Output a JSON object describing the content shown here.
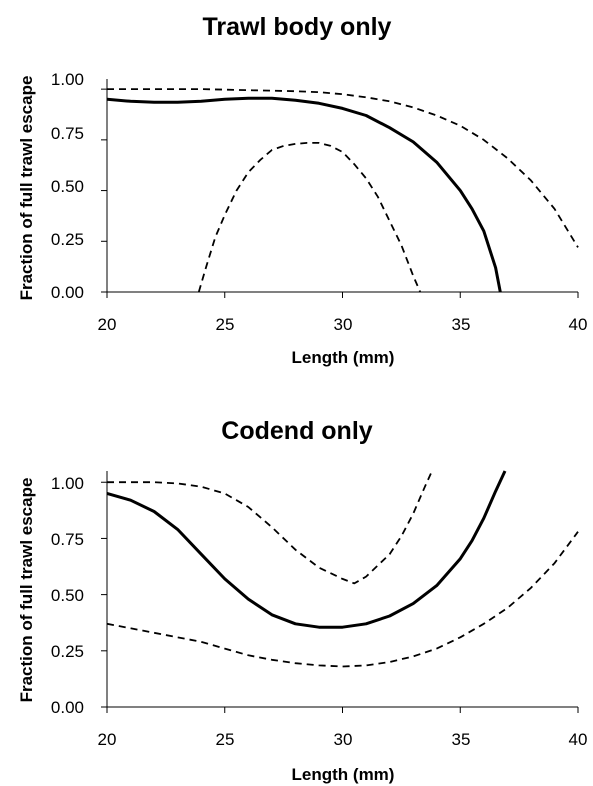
{
  "chart_data": [
    {
      "type": "line",
      "title": "Trawl body only",
      "xlabel": "Length (mm)",
      "ylabel": "Fraction of full trawl escape",
      "xlim": [
        20,
        40
      ],
      "ylim": [
        0,
        1.05
      ],
      "xticks": [
        "20",
        "25",
        "30",
        "35",
        "40"
      ],
      "yticks": [
        "0.00",
        "0.25",
        "0.50",
        "0.75",
        "1.00"
      ],
      "grid": false,
      "legend": "none",
      "series": [
        {
          "style": "solid",
          "x": [
            20,
            21,
            22,
            23,
            24,
            25,
            26,
            27,
            28,
            29,
            30,
            31,
            32,
            33,
            34,
            35,
            35.5,
            36,
            36.5,
            36.7
          ],
          "y": [
            0.95,
            0.94,
            0.935,
            0.935,
            0.94,
            0.95,
            0.955,
            0.955,
            0.945,
            0.93,
            0.905,
            0.87,
            0.81,
            0.74,
            0.64,
            0.5,
            0.41,
            0.3,
            0.12,
            0.0
          ]
        },
        {
          "style": "dashed",
          "x": [
            20,
            22,
            24,
            26,
            28,
            29,
            30,
            31,
            32,
            33,
            34,
            35,
            36,
            37,
            38,
            39,
            40
          ],
          "y": [
            1.0,
            1.0,
            1.0,
            0.995,
            0.99,
            0.985,
            0.975,
            0.96,
            0.94,
            0.91,
            0.87,
            0.82,
            0.75,
            0.66,
            0.55,
            0.41,
            0.22
          ]
        },
        {
          "style": "dashed",
          "x": [
            23.9,
            24.2,
            24.6,
            25,
            25.5,
            26,
            26.5,
            27,
            27.5,
            28,
            28.5,
            29,
            29.5,
            30,
            30.5,
            31,
            31.5,
            32,
            32.5,
            33,
            33.3
          ],
          "y": [
            0.0,
            0.12,
            0.27,
            0.38,
            0.5,
            0.59,
            0.65,
            0.7,
            0.72,
            0.73,
            0.735,
            0.735,
            0.72,
            0.69,
            0.63,
            0.56,
            0.47,
            0.35,
            0.23,
            0.08,
            0.0
          ]
        }
      ]
    },
    {
      "type": "line",
      "title": "Codend only",
      "xlabel": "Length (mm)",
      "ylabel": "Fraction of full trawl escape",
      "xlim": [
        20,
        40
      ],
      "ylim": [
        0,
        1.05
      ],
      "xticks": [
        "20",
        "25",
        "30",
        "35",
        "40"
      ],
      "yticks": [
        "0.00",
        "0.25",
        "0.50",
        "0.75",
        "1.00"
      ],
      "grid": false,
      "legend": "none",
      "series": [
        {
          "style": "solid",
          "x": [
            20,
            21,
            22,
            23,
            24,
            25,
            26,
            27,
            28,
            29,
            30,
            31,
            32,
            33,
            34,
            35,
            35.5,
            36,
            36.5,
            36.9
          ],
          "y": [
            0.95,
            0.92,
            0.87,
            0.79,
            0.68,
            0.57,
            0.48,
            0.41,
            0.37,
            0.355,
            0.355,
            0.37,
            0.405,
            0.46,
            0.54,
            0.66,
            0.74,
            0.84,
            0.96,
            1.05
          ]
        },
        {
          "style": "dashed",
          "x": [
            20,
            21,
            22,
            23,
            24,
            25,
            26,
            27,
            28,
            29,
            30,
            30.5,
            31,
            32,
            32.5,
            33,
            33.5,
            33.8
          ],
          "y": [
            1.0,
            1.0,
            1.0,
            0.995,
            0.98,
            0.95,
            0.89,
            0.8,
            0.7,
            0.62,
            0.57,
            0.55,
            0.58,
            0.68,
            0.76,
            0.86,
            0.98,
            1.05
          ]
        },
        {
          "style": "dashed",
          "x": [
            20,
            21,
            22,
            23,
            24,
            25,
            26,
            27,
            28,
            29,
            30,
            31,
            32,
            33,
            34,
            35,
            36,
            37,
            38,
            39,
            40
          ],
          "y": [
            0.37,
            0.35,
            0.33,
            0.31,
            0.29,
            0.26,
            0.23,
            0.21,
            0.195,
            0.185,
            0.18,
            0.185,
            0.2,
            0.225,
            0.26,
            0.31,
            0.37,
            0.44,
            0.53,
            0.64,
            0.78
          ]
        }
      ]
    }
  ]
}
